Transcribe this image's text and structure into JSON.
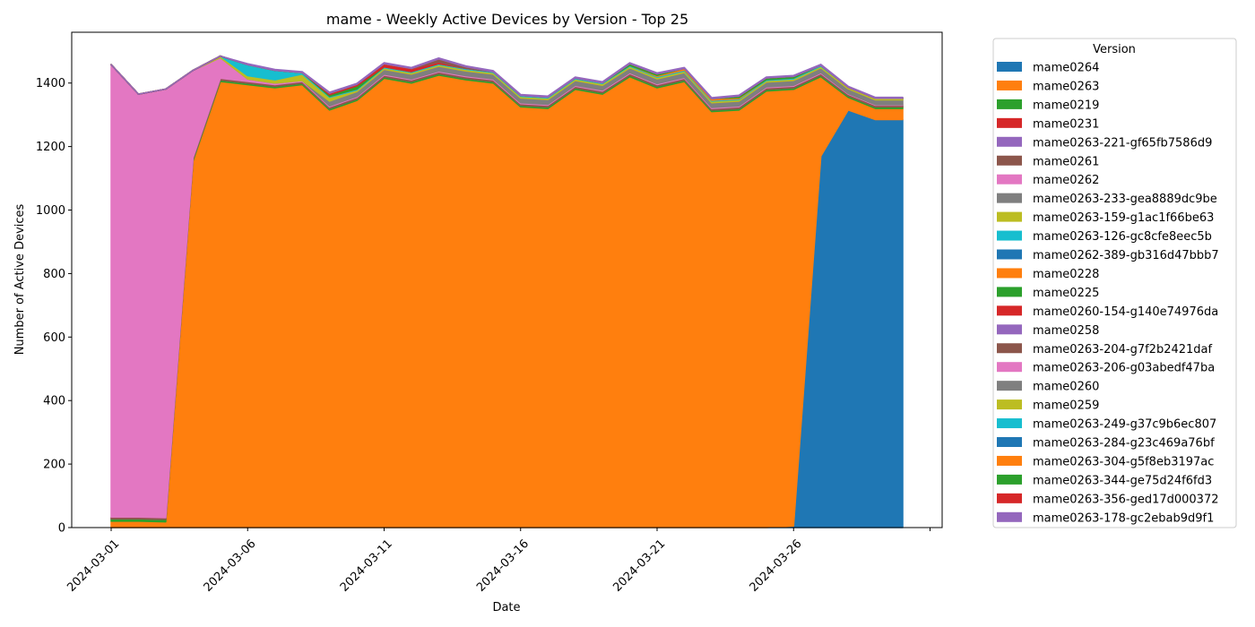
{
  "chart_data": {
    "type": "area",
    "stacked": true,
    "title": "mame - Weekly Active Devices by Version - Top 25",
    "xlabel": "Date",
    "ylabel": "Number of Active Devices",
    "ylim": [
      0,
      1560
    ],
    "yticks": [
      0,
      200,
      400,
      600,
      800,
      1000,
      1200,
      1400
    ],
    "xtick_labels": [
      "2024-03-01",
      "2024-03-06",
      "2024-03-11",
      "2024-03-16",
      "2024-03-21",
      "2024-03-26"
    ],
    "legend_title": "Version",
    "legend_position": "outside-right",
    "x": [
      "2024-03-01",
      "2024-03-02",
      "2024-03-03",
      "2024-03-04",
      "2024-03-05",
      "2024-03-06",
      "2024-03-07",
      "2024-03-08",
      "2024-03-09",
      "2024-03-10",
      "2024-03-11",
      "2024-03-12",
      "2024-03-13",
      "2024-03-14",
      "2024-03-15",
      "2024-03-16",
      "2024-03-17",
      "2024-03-18",
      "2024-03-19",
      "2024-03-20",
      "2024-03-21",
      "2024-03-22",
      "2024-03-23",
      "2024-03-24",
      "2024-03-25",
      "2024-03-26",
      "2024-03-27",
      "2024-03-28",
      "2024-03-29",
      "2024-03-30"
    ],
    "series": [
      {
        "name": "mame0264",
        "color": "#1f77b4",
        "values": [
          0,
          0,
          0,
          0,
          0,
          0,
          0,
          0,
          0,
          0,
          0,
          0,
          0,
          0,
          0,
          0,
          0,
          0,
          0,
          0,
          0,
          0,
          0,
          0,
          0,
          5,
          1170,
          1315,
          1285,
          1285
        ]
      },
      {
        "name": "mame0263",
        "color": "#ff7f0e",
        "values": [
          20,
          20,
          18,
          1155,
          1405,
          1395,
          1385,
          1395,
          1315,
          1345,
          1415,
          1400,
          1425,
          1410,
          1400,
          1325,
          1320,
          1380,
          1365,
          1420,
          1385,
          1405,
          1310,
          1315,
          1375,
          1375,
          250,
          40,
          35,
          35
        ]
      },
      {
        "name": "mame0219",
        "color": "#2ca02c",
        "values": [
          8,
          8,
          8,
          5,
          5,
          5,
          5,
          5,
          5,
          5,
          5,
          5,
          5,
          5,
          5,
          5,
          5,
          5,
          5,
          5,
          5,
          5,
          5,
          5,
          5,
          5,
          5,
          5,
          5,
          5
        ]
      },
      {
        "name": "mame0231",
        "color": "#d62728",
        "values": [
          0,
          0,
          0,
          0,
          0,
          0,
          0,
          0,
          0,
          0,
          0,
          0,
          0,
          0,
          0,
          0,
          0,
          0,
          0,
          0,
          0,
          0,
          0,
          0,
          0,
          0,
          0,
          0,
          0,
          0
        ]
      },
      {
        "name": "mame0263-221-gf65fb7586d9",
        "color": "#9467bd",
        "values": [
          0,
          0,
          0,
          0,
          0,
          0,
          0,
          0,
          0,
          0,
          0,
          0,
          0,
          0,
          0,
          0,
          0,
          0,
          0,
          0,
          0,
          0,
          0,
          0,
          0,
          0,
          0,
          0,
          0,
          0
        ]
      },
      {
        "name": "mame0261",
        "color": "#8c564b",
        "values": [
          5,
          5,
          5,
          5,
          5,
          5,
          5,
          5,
          5,
          5,
          5,
          5,
          5,
          5,
          5,
          5,
          5,
          5,
          5,
          5,
          5,
          5,
          5,
          5,
          5,
          5,
          5,
          5,
          5,
          5
        ]
      },
      {
        "name": "mame0262",
        "color": "#e377c2",
        "values": [
          1425,
          1332,
          1350,
          275,
          65,
          8,
          5,
          3,
          3,
          3,
          3,
          3,
          3,
          3,
          3,
          3,
          3,
          3,
          3,
          3,
          3,
          3,
          3,
          3,
          3,
          3,
          3,
          2,
          2,
          2
        ]
      },
      {
        "name": "mame0263-233-gea8889dc9be",
        "color": "#7f7f7f",
        "values": [
          0,
          0,
          0,
          0,
          0,
          0,
          0,
          0,
          15,
          15,
          15,
          15,
          15,
          15,
          15,
          15,
          15,
          15,
          15,
          15,
          15,
          15,
          15,
          15,
          15,
          15,
          15,
          15,
          15,
          15
        ]
      },
      {
        "name": "mame0263-159-g1ac1f66be63",
        "color": "#bcbd22",
        "values": [
          0,
          0,
          0,
          0,
          5,
          10,
          10,
          20,
          12,
          5,
          5,
          5,
          5,
          5,
          5,
          5,
          5,
          5,
          5,
          5,
          5,
          5,
          5,
          5,
          5,
          5,
          5,
          5,
          5,
          5
        ]
      },
      {
        "name": "mame0263-126-gc8cfe8eec5b",
        "color": "#17becf",
        "values": [
          0,
          0,
          0,
          0,
          0,
          35,
          30,
          5,
          3,
          3,
          3,
          3,
          3,
          3,
          3,
          3,
          3,
          3,
          3,
          3,
          3,
          3,
          3,
          3,
          3,
          3,
          3,
          0,
          0,
          0
        ]
      },
      {
        "name": "mame0262-389-gb316d47bbb7",
        "color": "#1f77b4",
        "values": [
          0,
          0,
          0,
          0,
          0,
          0,
          0,
          0,
          0,
          0,
          0,
          0,
          0,
          0,
          0,
          0,
          0,
          0,
          0,
          0,
          0,
          0,
          0,
          0,
          0,
          0,
          0,
          0,
          0,
          0
        ]
      },
      {
        "name": "mame0228",
        "color": "#ff7f0e",
        "values": [
          0,
          0,
          0,
          0,
          0,
          0,
          0,
          0,
          0,
          0,
          0,
          0,
          0,
          0,
          0,
          0,
          0,
          0,
          0,
          0,
          3,
          5,
          5,
          3,
          0,
          0,
          0,
          0,
          0,
          0
        ]
      },
      {
        "name": "mame0225",
        "color": "#2ca02c",
        "values": [
          0,
          0,
          0,
          0,
          0,
          0,
          0,
          0,
          5,
          10,
          0,
          0,
          0,
          0,
          0,
          0,
          0,
          0,
          0,
          5,
          5,
          0,
          0,
          5,
          5,
          5,
          0,
          0,
          0,
          0
        ]
      },
      {
        "name": "mame0260-154-g140e74976da",
        "color": "#d62728",
        "values": [
          0,
          0,
          0,
          0,
          0,
          0,
          0,
          0,
          5,
          5,
          10,
          10,
          5,
          0,
          0,
          0,
          0,
          0,
          0,
          0,
          0,
          0,
          0,
          0,
          0,
          0,
          0,
          0,
          0,
          0
        ]
      },
      {
        "name": "mame0258",
        "color": "#9467bd",
        "values": [
          0,
          0,
          0,
          0,
          0,
          0,
          0,
          0,
          0,
          0,
          0,
          0,
          0,
          0,
          0,
          0,
          0,
          0,
          0,
          0,
          0,
          0,
          0,
          0,
          0,
          0,
          0,
          0,
          0,
          0
        ]
      },
      {
        "name": "mame0263-204-g7f2b2421daf",
        "color": "#8c564b",
        "values": [
          0,
          0,
          0,
          0,
          0,
          0,
          0,
          0,
          0,
          0,
          0,
          0,
          10,
          5,
          0,
          0,
          0,
          0,
          0,
          0,
          0,
          0,
          0,
          0,
          0,
          0,
          0,
          0,
          0,
          0
        ]
      },
      {
        "name": "mame0263-206-g03abedf47ba",
        "color": "#e377c2",
        "values": [
          0,
          0,
          0,
          0,
          0,
          0,
          0,
          0,
          0,
          0,
          0,
          0,
          0,
          0,
          0,
          0,
          0,
          0,
          0,
          0,
          0,
          0,
          0,
          0,
          0,
          0,
          0,
          0,
          0,
          0
        ]
      },
      {
        "name": "mame0260",
        "color": "#7f7f7f",
        "values": [
          0,
          0,
          0,
          0,
          0,
          0,
          0,
          0,
          0,
          0,
          0,
          0,
          0,
          0,
          0,
          0,
          0,
          0,
          0,
          0,
          0,
          0,
          0,
          0,
          0,
          0,
          0,
          0,
          0,
          0
        ]
      },
      {
        "name": "mame0259",
        "color": "#bcbd22",
        "values": [
          0,
          0,
          0,
          0,
          0,
          0,
          0,
          0,
          0,
          0,
          0,
          0,
          0,
          0,
          0,
          0,
          0,
          0,
          0,
          0,
          0,
          0,
          0,
          0,
          0,
          0,
          0,
          0,
          0,
          0
        ]
      },
      {
        "name": "mame0263-249-g37c9b6ec807",
        "color": "#17becf",
        "values": [
          0,
          0,
          0,
          0,
          0,
          0,
          0,
          0,
          0,
          0,
          0,
          0,
          0,
          0,
          0,
          0,
          0,
          0,
          0,
          0,
          0,
          0,
          0,
          0,
          0,
          0,
          0,
          0,
          0,
          0
        ]
      },
      {
        "name": "mame0263-284-g23c469a76bf",
        "color": "#1f77b4",
        "values": [
          0,
          0,
          0,
          0,
          0,
          0,
          0,
          0,
          0,
          0,
          0,
          0,
          0,
          0,
          0,
          0,
          0,
          0,
          0,
          0,
          0,
          0,
          0,
          0,
          0,
          0,
          0,
          0,
          0,
          0
        ]
      },
      {
        "name": "mame0263-304-g5f8eb3197ac",
        "color": "#ff7f0e",
        "values": [
          0,
          0,
          0,
          0,
          0,
          0,
          0,
          0,
          0,
          0,
          0,
          0,
          0,
          0,
          0,
          0,
          0,
          0,
          0,
          0,
          0,
          0,
          0,
          0,
          0,
          0,
          0,
          0,
          0,
          0
        ]
      },
      {
        "name": "mame0263-344-ge75d24f6fd3",
        "color": "#2ca02c",
        "values": [
          0,
          0,
          0,
          0,
          0,
          0,
          0,
          0,
          0,
          0,
          0,
          0,
          0,
          0,
          0,
          0,
          0,
          0,
          0,
          0,
          0,
          0,
          0,
          0,
          0,
          0,
          0,
          0,
          0,
          0
        ]
      },
      {
        "name": "mame0263-356-ged17d000372",
        "color": "#d62728",
        "values": [
          0,
          0,
          0,
          0,
          0,
          0,
          0,
          0,
          0,
          0,
          0,
          0,
          0,
          0,
          0,
          0,
          0,
          0,
          0,
          0,
          0,
          0,
          0,
          0,
          0,
          0,
          0,
          0,
          0,
          0
        ]
      },
      {
        "name": "mame0263-178-gc2ebab9d9f1",
        "color": "#9467bd",
        "values": [
          0,
          0,
          0,
          0,
          0,
          3,
          3,
          3,
          3,
          3,
          3,
          3,
          3,
          3,
          3,
          3,
          3,
          3,
          3,
          3,
          3,
          3,
          3,
          3,
          3,
          3,
          3,
          3,
          3,
          3
        ]
      }
    ]
  }
}
